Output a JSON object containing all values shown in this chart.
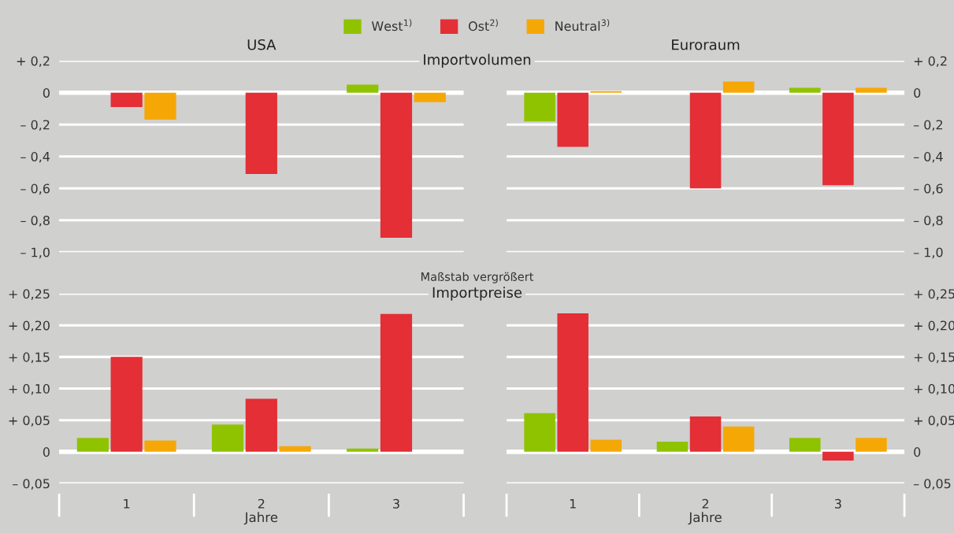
{
  "chart_data": [
    {
      "type": "bar",
      "title": "USA",
      "subtitle": "Importvolumen",
      "categories": [
        "1",
        "2",
        "3"
      ],
      "tick_labels": "y",
      "legend": "top",
      "grid": "y",
      "ylim": [
        -1.0,
        0.2
      ],
      "yticks": [
        {
          "value": 0.2,
          "label": "+ 0,2"
        },
        0,
        {
          "value": -0.2,
          "label": "– 0,2"
        },
        {
          "value": -0.4,
          "label": "– 0,4"
        },
        {
          "value": -0.6,
          "label": "– 0,6"
        },
        {
          "value": -0.8,
          "label": "– 0,8"
        },
        {
          "value": -1.0,
          "label": "– 1,0"
        }
      ],
      "series": [
        {
          "name": "West$^{1)}$",
          "color": "#8fc300",
          "values": [
            0,
            0,
            0.05
          ]
        },
        {
          "name": "Ost$^{2)}$",
          "color": "#e32f35",
          "values": [
            -0.09,
            -0.51,
            -0.91
          ]
        },
        {
          "name": "Neutral$^{3)}$",
          "color": "#f5a805",
          "values": [
            -0.17,
            0,
            -0.06
          ]
        }
      ]
    },
    {
      "type": "bar",
      "title": "Euroraum",
      "categories": [
        "1",
        "2",
        "3"
      ],
      "tick_labels": "y",
      "grid": "y",
      "ylim": [
        -1.0,
        0.2
      ],
      "yticks": [
        {
          "value": 0.2,
          "label": "+ 0,2"
        },
        0,
        {
          "value": -0.2,
          "label": "– 0,2"
        },
        {
          "value": -0.4,
          "label": "– 0,4"
        },
        {
          "value": -0.6,
          "label": "– 0,6"
        },
        {
          "value": -0.8,
          "label": "– 0,8"
        },
        {
          "value": -1.0,
          "label": "– 1,0"
        }
      ],
      "series": [
        {
          "color": "#8fc300",
          "values": [
            -0.18,
            0,
            0.03
          ]
        },
        {
          "color": "#e32f35",
          "values": [
            -0.34,
            -0.6,
            -0.58
          ]
        },
        {
          "color": "#f5a805",
          "values": [
            0.01,
            0.07,
            0.03
          ]
        }
      ]
    },
    {
      "type": "bar",
      "title": "Importpreise",
      "annotations": [
        "Maßstab vergrößert"
      ],
      "xlabel": "Jahre",
      "categories": [
        "1",
        "2",
        "3"
      ],
      "grid": "y",
      "ylim": [
        -0.05,
        0.25
      ],
      "yticks": [
        {
          "value": 0.25,
          "label": "+ 0,25"
        },
        {
          "value": 0.2,
          "label": "+ 0,20"
        },
        {
          "value": 0.15,
          "label": "+ 0,15"
        },
        {
          "value": 0.1,
          "label": "+ 0,10"
        },
        {
          "value": 0.05,
          "label": "+ 0,05"
        },
        0,
        {
          "value": -0.05,
          "label": "– 0,05"
        }
      ],
      "series": [
        {
          "color": "#8fc300",
          "values": [
            0.022,
            0.043,
            0.005
          ]
        },
        {
          "color": "#e32f35",
          "values": [
            0.15,
            0.084,
            0.218
          ]
        },
        {
          "color": "#f5a805",
          "values": [
            0.018,
            0.009,
            0
          ]
        }
      ]
    },
    {
      "type": "bar",
      "xlabel": "Jahre",
      "categories": [
        "1",
        "2",
        "3"
      ],
      "grid": "y",
      "ylim": [
        -0.05,
        0.25
      ],
      "yticks": [
        {
          "value": 0.25,
          "label": "+ 0,25"
        },
        {
          "value": 0.2,
          "label": "+ 0,20"
        },
        {
          "value": 0.15,
          "label": "+ 0,15"
        },
        {
          "value": 0.1,
          "label": "+ 0,10"
        },
        {
          "value": 0.05,
          "label": "+ 0,05"
        },
        0,
        {
          "value": -0.05,
          "label": "– 0,05"
        }
      ],
      "series": [
        {
          "color": "#8fc300",
          "values": [
            0.061,
            0.016,
            0.022
          ]
        },
        {
          "color": "#e32f35",
          "values": [
            0.219,
            0.056,
            -0.014
          ]
        },
        {
          "color": "#f5a805",
          "values": [
            0.019,
            0.04,
            0.022
          ]
        }
      ]
    }
  ]
}
